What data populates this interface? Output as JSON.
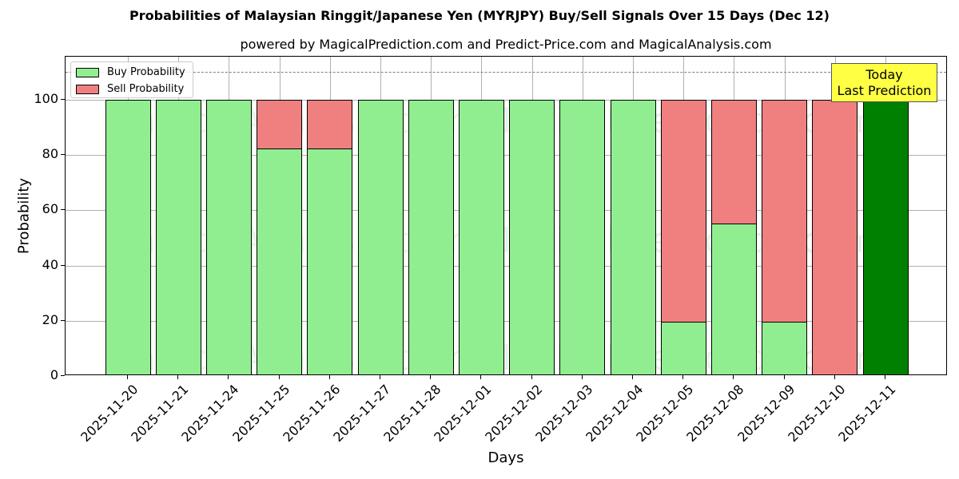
{
  "chart_data": {
    "type": "bar",
    "stacked": true,
    "title": "Probabilities of Malaysian Ringgit/Japanese Yen (MYRJPY) Buy/Sell Signals Over 15 Days (Dec 12)",
    "subtitle": "powered by MagicalPrediction.com and Predict-Price.com and MagicalAnalysis.com",
    "xlabel": "Days",
    "ylabel": "Probability",
    "ylim": [
      0,
      115
    ],
    "yticks": [
      0,
      20,
      40,
      60,
      80,
      100
    ],
    "threshold_line": 110,
    "grid": true,
    "legend_position": "upper left",
    "categories": [
      "2025-11-20",
      "2025-11-21",
      "2025-11-24",
      "2025-11-25",
      "2025-11-26",
      "2025-11-27",
      "2025-11-28",
      "2025-12-01",
      "2025-12-02",
      "2025-12-03",
      "2025-12-04",
      "2025-12-05",
      "2025-12-08",
      "2025-12-09",
      "2025-12-10",
      "2025-12-11"
    ],
    "series": [
      {
        "name": "Buy Probability",
        "color": "#90ee90",
        "values": [
          100,
          100,
          100,
          82.7,
          82.7,
          100,
          100,
          100,
          100,
          100,
          100,
          20,
          55.5,
          20,
          0,
          100
        ]
      },
      {
        "name": "Sell Probability",
        "color": "#f08080",
        "values": [
          0,
          0,
          0,
          17.3,
          17.3,
          0,
          0,
          0,
          0,
          0,
          0,
          80,
          44.5,
          80,
          100,
          0
        ]
      }
    ],
    "highlight": {
      "index": 15,
      "color": "#008000"
    },
    "annotation": {
      "line1": "Today",
      "line2": "Last Prediction",
      "background": "#ffff44"
    },
    "watermarks": [
      "MagicalAnalysis.com",
      "MagicalPrediction.com"
    ]
  }
}
